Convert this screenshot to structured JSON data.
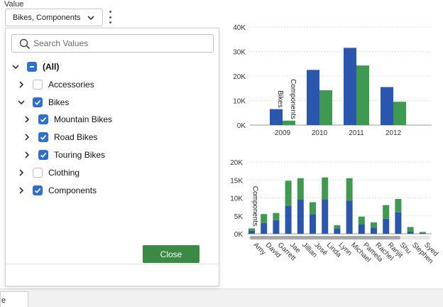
{
  "field_label": "Value",
  "selector": {
    "value": "Bikes, Components"
  },
  "bottom_tab_label": "e",
  "panel": {
    "search_placeholder": "Search Values",
    "tree": [
      {
        "label": "(All)",
        "state": "mixed",
        "expander": "down",
        "indent": 0,
        "bold": true
      },
      {
        "label": "Accessories",
        "state": "off",
        "expander": "right",
        "indent": 1
      },
      {
        "label": "Bikes",
        "state": "on",
        "expander": "down",
        "indent": 1
      },
      {
        "label": "Mountain Bikes",
        "state": "on",
        "expander": "right",
        "indent": 2
      },
      {
        "label": "Road Bikes",
        "state": "on",
        "expander": "right",
        "indent": 2
      },
      {
        "label": "Touring Bikes",
        "state": "on",
        "expander": "right",
        "indent": 2
      },
      {
        "label": "Clothing",
        "state": "off",
        "expander": "right",
        "indent": 1
      },
      {
        "label": "Components",
        "state": "on",
        "expander": "right",
        "indent": 1
      }
    ],
    "close_label": "Close"
  },
  "colors": {
    "bikes": "#2a56ad",
    "components": "#3f9950",
    "accent": "#2f6fcf",
    "close": "#3a8a46"
  },
  "chart_data": [
    {
      "type": "bar",
      "categories": [
        "2009",
        "2010",
        "2011",
        "2012"
      ],
      "series": [
        {
          "name": "Bikes",
          "values": [
            6500,
            22500,
            31500,
            15500
          ]
        },
        {
          "name": "Components",
          "values": [
            1800,
            14200,
            24300,
            9500
          ]
        }
      ],
      "ylim": [
        0,
        40000
      ],
      "yticks": [
        "0K",
        "10K",
        "20K",
        "30K",
        "40K"
      ],
      "grid": true
    },
    {
      "type": "bar",
      "stacked": true,
      "categories": [
        "Amy",
        "David",
        "Garrett",
        "Jae",
        "Jillian",
        "José",
        "Linda",
        "Lynn",
        "Michael",
        "Pamela",
        "Rachel",
        "Ranjit",
        "Shu",
        "Stephen",
        "Syed"
      ],
      "series": [
        {
          "name": "Bikes",
          "values": [
            800,
            3000,
            3800,
            7800,
            9500,
            5500,
            9500,
            1500,
            9200,
            2700,
            1700,
            4200,
            6000,
            600,
            200
          ]
        },
        {
          "name": "Components",
          "values": [
            700,
            2500,
            2000,
            7000,
            6000,
            3300,
            6200,
            900,
            6300,
            2100,
            1500,
            3800,
            3700,
            1300,
            300
          ]
        }
      ],
      "ylim": [
        0,
        20000
      ],
      "yticks": [
        "0K",
        "5K",
        "10K",
        "15K",
        "20K"
      ],
      "grid": true
    }
  ]
}
